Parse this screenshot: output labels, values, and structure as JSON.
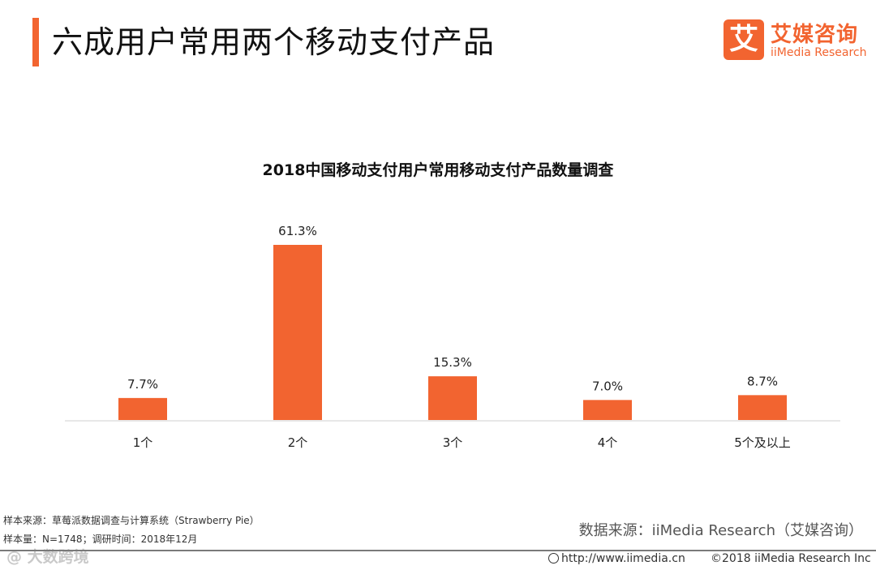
{
  "header": {
    "title": "六成用户常用两个移动支付产品",
    "logo_mark": "艾",
    "logo_cn": "艾媒咨询",
    "logo_en": "iiMedia Research"
  },
  "chart_data": {
    "type": "bar",
    "title": "2018中国移动支付用户常用移动支付产品数量调查",
    "categories": [
      "1个",
      "2个",
      "3个",
      "4个",
      "5个及以上"
    ],
    "values": [
      7.7,
      61.3,
      15.3,
      7.0,
      8.7
    ],
    "value_labels": [
      "7.7%",
      "61.3%",
      "15.3%",
      "7.0%",
      "8.7%"
    ],
    "unit": "%",
    "ylim": [
      0,
      61.3
    ],
    "grid": false,
    "legend": "none",
    "bar_color": "#f26430",
    "xlabel": "",
    "ylabel": ""
  },
  "notes": {
    "sample_source": "样本来源：草莓派数据调查与计算系统（Strawberry Pie）",
    "sample_size": "样本量：N=1748；调研时间：2018年12月"
  },
  "source": "数据来源：iiMedia Research（艾媒咨询）",
  "footer": {
    "watermark": "@ 大数跨境",
    "url": "http://www.iimedia.cn",
    "copyright": "©2018  iiMedia Research  Inc"
  }
}
